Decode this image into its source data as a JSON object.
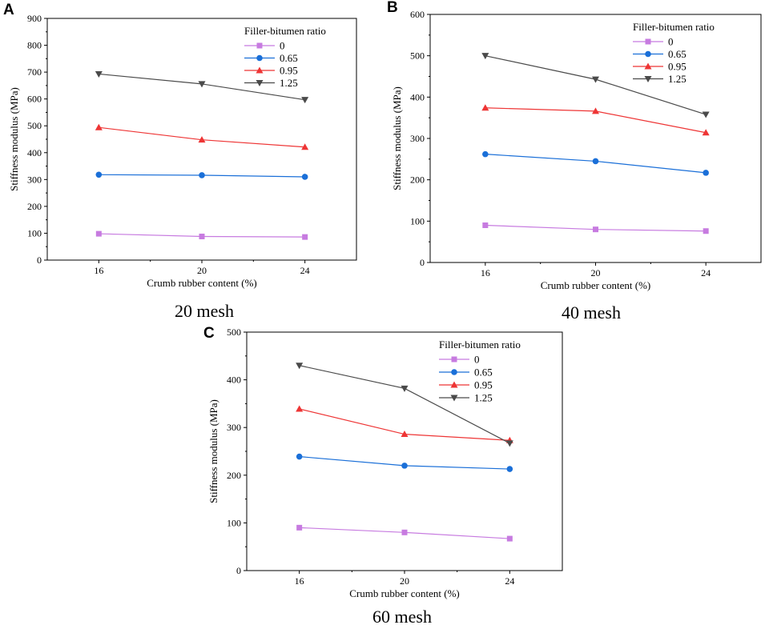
{
  "chart_data": [
    {
      "type": "line",
      "panel": "A",
      "caption": "20 mesh",
      "xlabel": "Crumb rubber content (%)",
      "ylabel": "Stiffness modulus (MPa)",
      "x": [
        16,
        20,
        24
      ],
      "xticks": [
        "16",
        "20",
        "24"
      ],
      "xlim": [
        14,
        26
      ],
      "ylim": [
        0,
        900
      ],
      "yticks": [
        0,
        100,
        200,
        300,
        400,
        500,
        600,
        700,
        800,
        900
      ],
      "legend_title": "Filler-bitumen ratio",
      "legend_position": "top-right",
      "series": [
        {
          "name": "0",
          "values": [
            98,
            88,
            86
          ],
          "color": "#c77be0",
          "marker": "square"
        },
        {
          "name": "0.65",
          "values": [
            318,
            316,
            310
          ],
          "color": "#1a6fd8",
          "marker": "circle"
        },
        {
          "name": "0.95",
          "values": [
            494,
            448,
            421
          ],
          "color": "#ee3535",
          "marker": "triangle-up"
        },
        {
          "name": "1.25",
          "values": [
            693,
            656,
            597
          ],
          "color": "#4a4a4a",
          "marker": "triangle-down"
        }
      ]
    },
    {
      "type": "line",
      "panel": "B",
      "caption": "40 mesh",
      "xlabel": "Crumb rubber content (%)",
      "ylabel": "Stiffness modulus (MPa)",
      "x": [
        16,
        20,
        24
      ],
      "xticks": [
        "16",
        "20",
        "24"
      ],
      "xlim": [
        14,
        26
      ],
      "ylim": [
        0,
        600
      ],
      "yticks": [
        0,
        100,
        200,
        300,
        400,
        500,
        600
      ],
      "legend_title": "Filler-bitumen ratio",
      "legend_position": "top-right",
      "series": [
        {
          "name": "0",
          "values": [
            90,
            80,
            76
          ],
          "color": "#c77be0",
          "marker": "square"
        },
        {
          "name": "0.65",
          "values": [
            262,
            245,
            217
          ],
          "color": "#1a6fd8",
          "marker": "circle"
        },
        {
          "name": "0.95",
          "values": [
            374,
            366,
            314
          ],
          "color": "#ee3535",
          "marker": "triangle-up"
        },
        {
          "name": "1.25",
          "values": [
            500,
            443,
            358
          ],
          "color": "#4a4a4a",
          "marker": "triangle-down"
        }
      ]
    },
    {
      "type": "line",
      "panel": "C",
      "caption": "60 mesh",
      "xlabel": "Crumb rubber content (%)",
      "ylabel": "Stiffness modulus (MPa)",
      "x": [
        16,
        20,
        24
      ],
      "xticks": [
        "16",
        "20",
        "24"
      ],
      "xlim": [
        14,
        26
      ],
      "ylim": [
        0,
        500
      ],
      "yticks": [
        0,
        100,
        200,
        300,
        400,
        500
      ],
      "legend_title": "Filler-bitumen ratio",
      "legend_position": "top-right",
      "series": [
        {
          "name": "0",
          "values": [
            90,
            80,
            67
          ],
          "color": "#c77be0",
          "marker": "square"
        },
        {
          "name": "0.65",
          "values": [
            239,
            220,
            213
          ],
          "color": "#1a6fd8",
          "marker": "circle"
        },
        {
          "name": "0.95",
          "values": [
            339,
            286,
            273
          ],
          "color": "#ee3535",
          "marker": "triangle-up"
        },
        {
          "name": "1.25",
          "values": [
            430,
            382,
            267
          ],
          "color": "#4a4a4a",
          "marker": "triangle-down"
        }
      ]
    }
  ]
}
